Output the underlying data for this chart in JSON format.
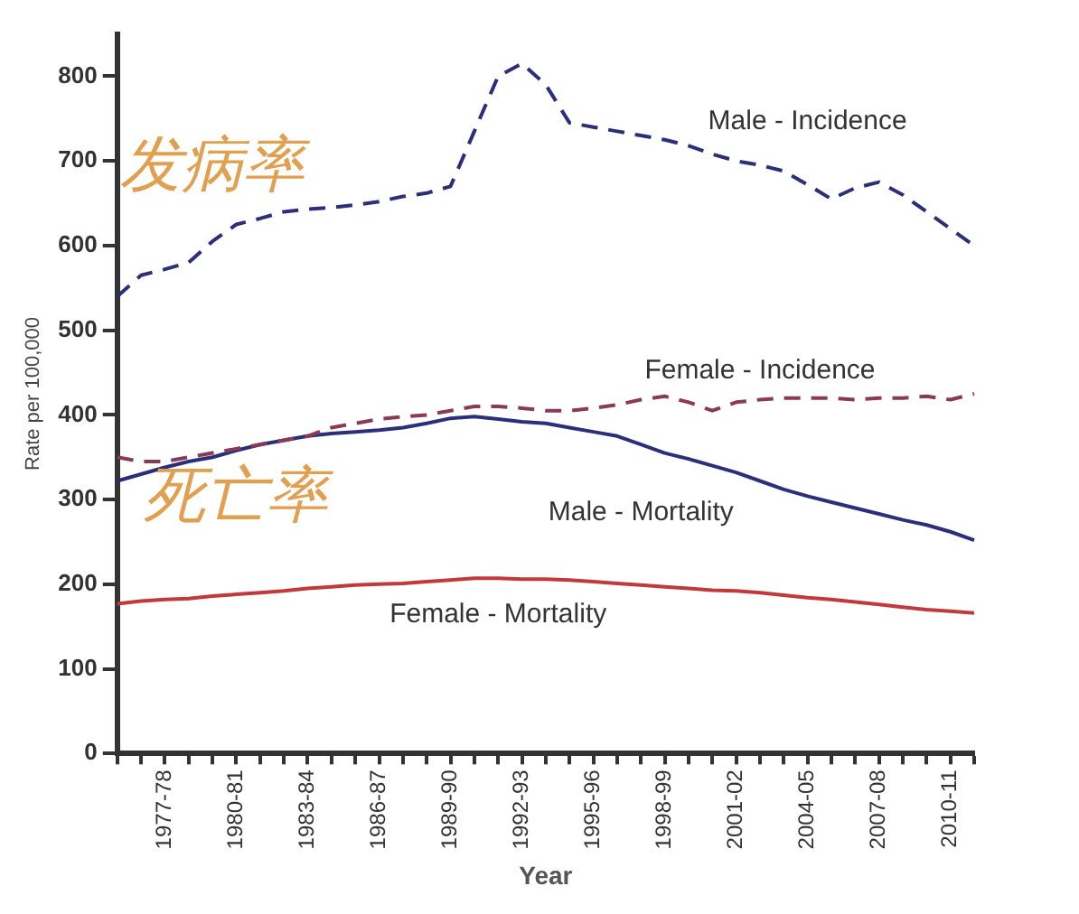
{
  "chart_data": {
    "type": "line",
    "xlabel": "Year",
    "ylabel": "Rate per 100,000",
    "categories": [
      null,
      null,
      "1977-78",
      null,
      null,
      "1980-81",
      null,
      null,
      "1983-84",
      null,
      null,
      "1986-87",
      null,
      null,
      "1989-90",
      null,
      null,
      "1992-93",
      null,
      null,
      "1995-96",
      null,
      null,
      "1998-99",
      null,
      null,
      "2001-02",
      null,
      null,
      "2004-05",
      null,
      null,
      "2007-08",
      null,
      null,
      "2010-11",
      null
    ],
    "series": [
      {
        "name": "Male - Incidence",
        "color": "#2b2f7a",
        "line_style": "dashed",
        "values": [
          540,
          565,
          572,
          580,
          605,
          625,
          632,
          640,
          643,
          645,
          648,
          652,
          658,
          662,
          670,
          735,
          800,
          815,
          790,
          745,
          740,
          735,
          730,
          725,
          718,
          708,
          700,
          695,
          688,
          672,
          655,
          668,
          675,
          660,
          640,
          620,
          600
        ]
      },
      {
        "name": "Female - Incidence",
        "color": "#8b3a55",
        "line_style": "dashed",
        "values": [
          350,
          345,
          345,
          350,
          355,
          360,
          365,
          370,
          375,
          385,
          390,
          395,
          398,
          400,
          405,
          410,
          410,
          408,
          405,
          405,
          408,
          412,
          418,
          422,
          415,
          405,
          415,
          418,
          420,
          420,
          420,
          418,
          420,
          420,
          422,
          418,
          425
        ]
      },
      {
        "name": "Male - Mortality",
        "color": "#2b2f7a",
        "line_style": "solid",
        "values": [
          322,
          330,
          338,
          345,
          350,
          358,
          365,
          370,
          375,
          378,
          380,
          382,
          385,
          390,
          396,
          398,
          395,
          392,
          390,
          385,
          380,
          375,
          365,
          355,
          348,
          340,
          332,
          322,
          312,
          304,
          297,
          290,
          283,
          276,
          270,
          262,
          252
        ]
      },
      {
        "name": "Female - Mortality",
        "color": "#c0393b",
        "line_style": "solid",
        "values": [
          177,
          180,
          182,
          183,
          186,
          188,
          190,
          192,
          195,
          197,
          199,
          200,
          201,
          203,
          205,
          207,
          207,
          206,
          206,
          205,
          203,
          201,
          199,
          197,
          195,
          193,
          192,
          190,
          187,
          184,
          182,
          179,
          176,
          173,
          170,
          168,
          166
        ]
      }
    ],
    "annotations": [
      "发病率",
      "死亡率"
    ],
    "ylim": [
      0,
      850
    ],
    "yticks": [
      0,
      100,
      200,
      300,
      400,
      500,
      600,
      700,
      800
    ],
    "grid": false,
    "legend": false,
    "marker": "none"
  }
}
